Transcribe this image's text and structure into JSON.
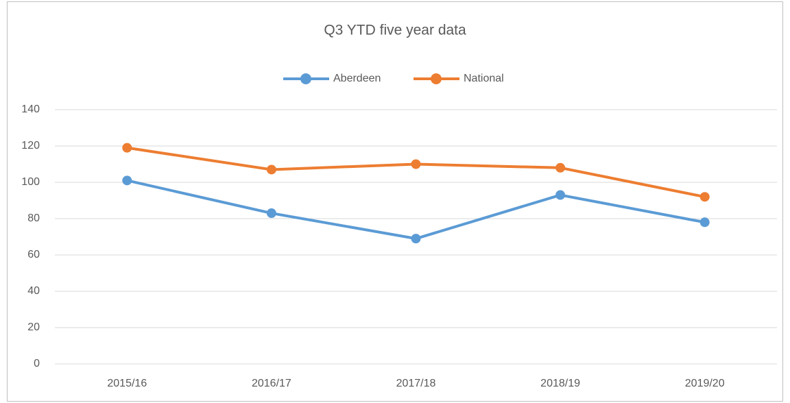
{
  "chart_data": {
    "type": "line",
    "title": "Q3 YTD five year data",
    "categories": [
      "2015/16",
      "2016/17",
      "2017/18",
      "2018/19",
      "2019/20"
    ],
    "series": [
      {
        "name": "Aberdeen",
        "color": "#5b9bd5",
        "values": [
          101,
          83,
          69,
          93,
          78
        ]
      },
      {
        "name": "National",
        "color": "#ed7d31",
        "values": [
          119,
          107,
          110,
          108,
          92
        ]
      }
    ],
    "ylim": [
      0,
      140
    ],
    "yticks": [
      0,
      20,
      40,
      60,
      80,
      100,
      120,
      140
    ],
    "grid": true,
    "legend": "top"
  }
}
